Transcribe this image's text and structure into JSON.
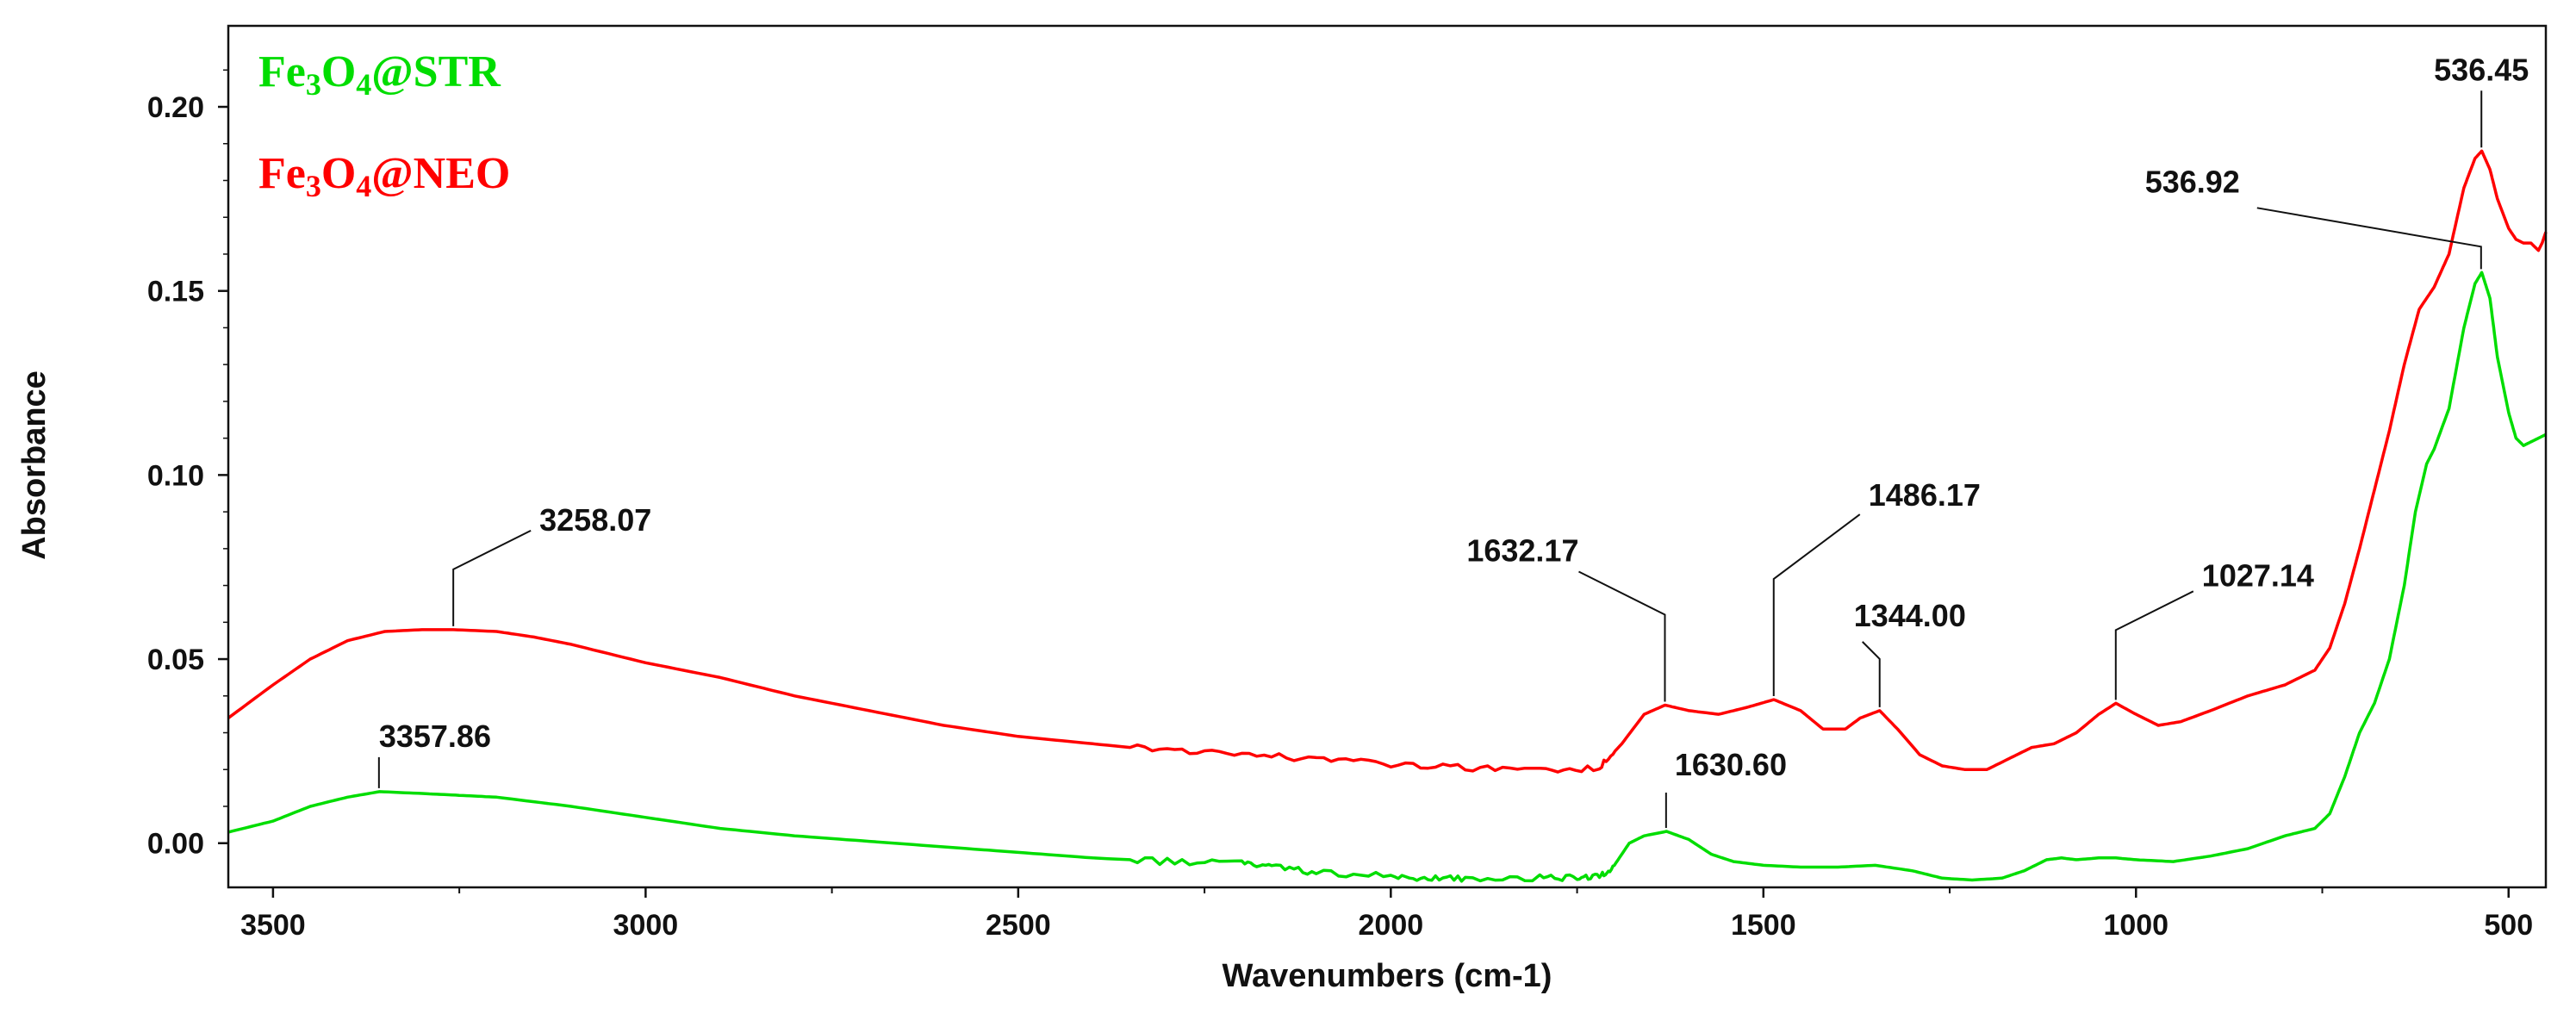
{
  "chart_data": {
    "type": "line",
    "xlabel": "Wavenumbers (cm-1)",
    "ylabel": "Absorbance",
    "xlim": [
      3560,
      450
    ],
    "ylim": [
      -0.012,
      0.222
    ],
    "x_reversed": true,
    "x_ticks": [
      3500,
      3000,
      2500,
      2000,
      1500,
      1000,
      500
    ],
    "x_tick_labels": [
      "3500",
      "3000",
      "2500",
      "2000",
      "1500",
      "1000",
      "500"
    ],
    "y_ticks": [
      0.0,
      0.05,
      0.1,
      0.15,
      0.2
    ],
    "y_tick_labels": [
      "0.00",
      "0.05",
      "0.10",
      "0.15",
      "0.20"
    ],
    "series": [
      {
        "name_parts": [
          "Fe",
          "3",
          "O",
          "4",
          "@NEO"
        ],
        "color": "#ff0000",
        "x": [
          3560,
          3500,
          3450,
          3400,
          3350,
          3300,
          3258,
          3200,
          3150,
          3100,
          3000,
          2900,
          2800,
          2700,
          2600,
          2500,
          2400,
          2300,
          2200,
          2100,
          2000,
          1900,
          1800,
          1720,
          1690,
          1660,
          1632,
          1600,
          1560,
          1520,
          1486,
          1450,
          1420,
          1390,
          1370,
          1344,
          1320,
          1290,
          1260,
          1230,
          1200,
          1170,
          1140,
          1110,
          1080,
          1050,
          1027,
          1000,
          970,
          940,
          900,
          850,
          800,
          760,
          740,
          720,
          700,
          680,
          660,
          640,
          620,
          600,
          580,
          560,
          545,
          536,
          525,
          515,
          500,
          490,
          480,
          470,
          460,
          455,
          450
        ],
        "y": [
          0.034,
          0.043,
          0.05,
          0.055,
          0.0575,
          0.058,
          0.058,
          0.0575,
          0.056,
          0.054,
          0.049,
          0.045,
          0.04,
          0.036,
          0.032,
          0.029,
          0.027,
          0.025,
          0.024,
          0.023,
          0.0215,
          0.0205,
          0.0195,
          0.0205,
          0.027,
          0.035,
          0.0375,
          0.036,
          0.035,
          0.037,
          0.039,
          0.036,
          0.031,
          0.031,
          0.034,
          0.036,
          0.031,
          0.024,
          0.021,
          0.02,
          0.02,
          0.023,
          0.026,
          0.027,
          0.03,
          0.035,
          0.038,
          0.035,
          0.032,
          0.033,
          0.036,
          0.04,
          0.043,
          0.047,
          0.053,
          0.065,
          0.08,
          0.096,
          0.112,
          0.13,
          0.145,
          0.151,
          0.16,
          0.178,
          0.186,
          0.188,
          0.183,
          0.175,
          0.167,
          0.164,
          0.163,
          0.163,
          0.161,
          0.163,
          0.166
        ]
      },
      {
        "name_parts": [
          "Fe",
          "3",
          "O",
          "4",
          "@STR"
        ],
        "color": "#00dd00",
        "x": [
          3560,
          3500,
          3450,
          3400,
          3357,
          3300,
          3250,
          3200,
          3100,
          3000,
          2900,
          2800,
          2700,
          2600,
          2500,
          2400,
          2300,
          2200,
          2160,
          2100,
          2000,
          1950,
          1900,
          1800,
          1750,
          1720,
          1700,
          1680,
          1660,
          1630,
          1600,
          1570,
          1540,
          1500,
          1450,
          1400,
          1350,
          1300,
          1260,
          1220,
          1180,
          1150,
          1120,
          1100,
          1080,
          1050,
          1027,
          1000,
          950,
          900,
          850,
          800,
          780,
          760,
          740,
          720,
          700,
          680,
          660,
          640,
          625,
          610,
          600,
          580,
          560,
          545,
          536,
          525,
          515,
          500,
          490,
          480,
          470,
          460,
          450
        ],
        "y": [
          0.003,
          0.006,
          0.01,
          0.0125,
          0.014,
          0.0135,
          0.013,
          0.0125,
          0.01,
          0.007,
          0.004,
          0.002,
          0.0005,
          -0.001,
          -0.0025,
          -0.004,
          -0.005,
          -0.005,
          -0.0065,
          -0.008,
          -0.009,
          -0.0095,
          -0.0095,
          -0.0095,
          -0.0095,
          -0.009,
          -0.006,
          0.0,
          0.002,
          0.0032,
          0.001,
          -0.003,
          -0.005,
          -0.006,
          -0.0065,
          -0.0065,
          -0.006,
          -0.0075,
          -0.0095,
          -0.01,
          -0.0095,
          -0.0075,
          -0.0045,
          -0.004,
          -0.0045,
          -0.004,
          -0.004,
          -0.0045,
          -0.005,
          -0.0035,
          -0.0015,
          0.002,
          0.003,
          0.004,
          0.008,
          0.018,
          0.03,
          0.038,
          0.05,
          0.07,
          0.09,
          0.103,
          0.107,
          0.118,
          0.14,
          0.152,
          0.155,
          0.148,
          0.132,
          0.117,
          0.11,
          0.108,
          0.109,
          0.11,
          0.111
        ]
      }
    ],
    "annotations": [
      {
        "label": "536.45",
        "series": 0,
        "x": 536.45,
        "y": 0.188
      },
      {
        "label": "536.92",
        "series": 1,
        "x": 536.92,
        "y": 0.155
      },
      {
        "label": "3258.07",
        "series": 0,
        "x": 3258.07,
        "y": 0.058
      },
      {
        "label": "1632.17",
        "series": 0,
        "x": 1632.17,
        "y": 0.0375
      },
      {
        "label": "1486.17",
        "series": 0,
        "x": 1486.17,
        "y": 0.039
      },
      {
        "label": "1344.00",
        "series": 0,
        "x": 1344.0,
        "y": 0.036
      },
      {
        "label": "1027.14",
        "series": 0,
        "x": 1027.14,
        "y": 0.038
      },
      {
        "label": "3357.86",
        "series": 1,
        "x": 3357.86,
        "y": 0.014
      },
      {
        "label": "1630.60",
        "series": 1,
        "x": 1630.6,
        "y": 0.0032
      }
    ]
  }
}
